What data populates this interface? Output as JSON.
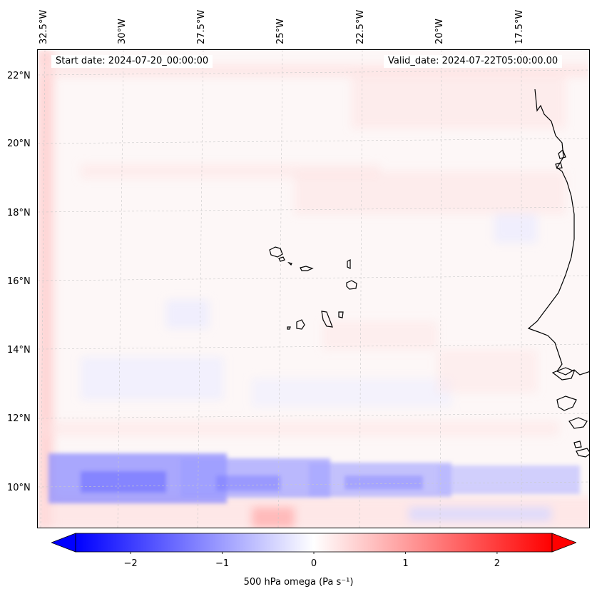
{
  "map": {
    "region": "Cape Verde / West African coast",
    "start_date": "Start date: 2024-07-20_00:00:00",
    "valid_date": "Valid_date: 2024-07-22T05:00:00.00",
    "lon_labels": [
      "32.5°W",
      "30°W",
      "27.5°W",
      "25°W",
      "22.5°W",
      "20°W",
      "17.5°W"
    ],
    "lat_labels": [
      "22°N",
      "20°N",
      "18°N",
      "16°N",
      "14°N",
      "12°N",
      "10°N"
    ],
    "colors": {
      "neg": "#0000ff",
      "zero": "#ffffff",
      "pos": "#ff0000",
      "coast": "#000000",
      "grid": "#c8c8c8"
    }
  },
  "colorbar": {
    "label": "500 hPa omega (Pa s⁻¹)",
    "min": -2.6,
    "max": 2.6,
    "ticks": [
      {
        "value": -2,
        "label": "−2"
      },
      {
        "value": -1,
        "label": "−1"
      },
      {
        "value": 0,
        "label": "0"
      },
      {
        "value": 1,
        "label": "1"
      },
      {
        "value": 2,
        "label": "2"
      }
    ]
  }
}
